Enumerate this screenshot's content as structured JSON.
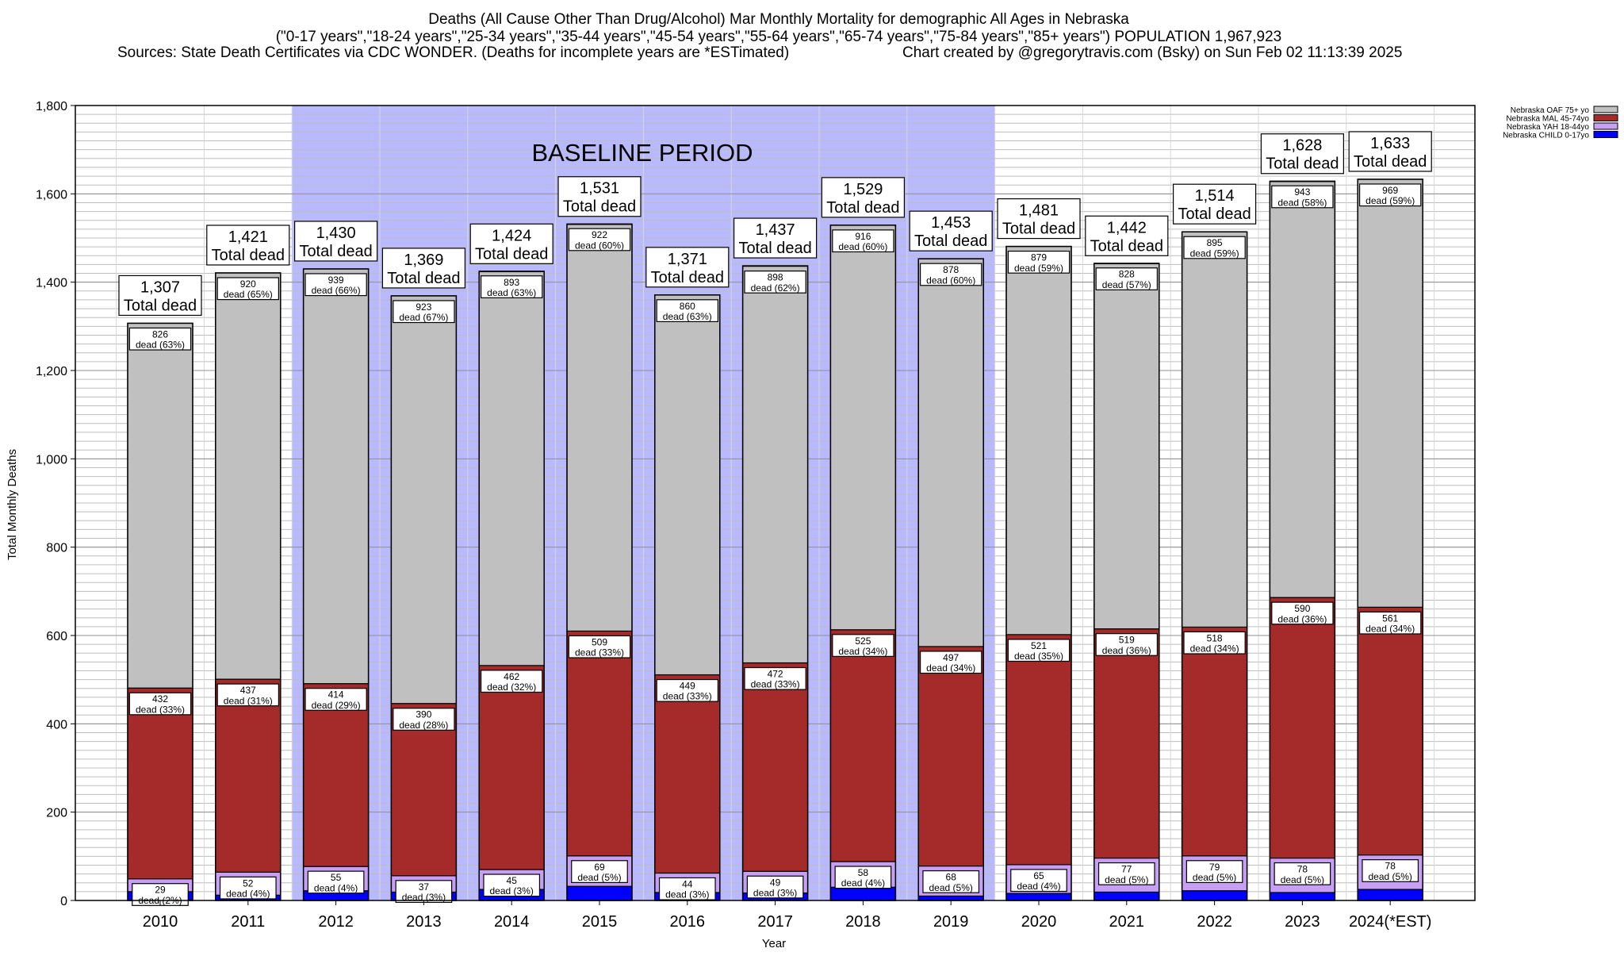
{
  "title_lines": [
    "Deaths (All Cause Other Than Drug/Alcohol) Mar Monthly Mortality for demographic All Ages in Nebraska",
    "(\"0-17 years\",\"18-24 years\",\"25-34 years\",\"35-44 years\",\"45-54 years\",\"55-64 years\",\"65-74 years\",\"75-84 years\",\"85+ years\") POPULATION 1,967,923",
    "Sources: State Death Certificates via CDC WONDER. (Deaths for incomplete years are *ESTimated)",
    "Chart created by @gregorytravis.com (Bsky) on Sun Feb 02 11:13:39 2025"
  ],
  "baseline_label": "BASELINE PERIOD",
  "total_word": "Total dead",
  "dead_word": "dead",
  "colors": {
    "oaf": "#c0c0c0",
    "mal": "#a52a2a",
    "yah": "#c7a0f5",
    "child": "#0000ff",
    "baseline": "#b9b9ff"
  },
  "chart_data": {
    "type": "bar",
    "stacked": true,
    "xlabel": "Year",
    "ylabel": "Total Monthly Deaths",
    "ylim": [
      0,
      1800
    ],
    "yticks": [
      0,
      200,
      400,
      600,
      800,
      1000,
      1200,
      1400,
      1600,
      1800
    ],
    "ytick_labels": [
      "0",
      "200",
      "400",
      "600",
      "800",
      "1,000",
      "1,200",
      "1,400",
      "1,600",
      "1,800"
    ],
    "grid": true,
    "legend_position": "top-right",
    "baseline_period": [
      "2012",
      "2019"
    ],
    "categories": [
      "2010",
      "2011",
      "2012",
      "2013",
      "2014",
      "2015",
      "2016",
      "2017",
      "2018",
      "2019",
      "2020",
      "2021",
      "2022",
      "2023",
      "2024(*EST)"
    ],
    "totals": [
      1307,
      1421,
      1430,
      1369,
      1424,
      1531,
      1371,
      1437,
      1529,
      1453,
      1481,
      1442,
      1514,
      1628,
      1633
    ],
    "total_labels": [
      "1,307",
      "1,421",
      "1,430",
      "1,369",
      "1,424",
      "1,531",
      "1,371",
      "1,437",
      "1,529",
      "1,453",
      "1,481",
      "1,442",
      "1,514",
      "1,628",
      "1,633"
    ],
    "series": [
      {
        "name": "Nebraska CHILD 0-17yo",
        "key": "child",
        "values": [
          20,
          12,
          22,
          19,
          25,
          32,
          18,
          17,
          30,
          10,
          16,
          19,
          22,
          18,
          25
        ],
        "labels": [],
        "pct": []
      },
      {
        "name": "Nebraska YAH 18-44yo",
        "key": "yah",
        "values": [
          29,
          52,
          55,
          37,
          45,
          69,
          44,
          49,
          58,
          68,
          65,
          77,
          79,
          78,
          78
        ],
        "labels": [
          "29",
          "52",
          "55",
          "37",
          "45",
          "69",
          "44",
          "49",
          "58",
          "68",
          "65",
          "77",
          "79",
          "78",
          "78"
        ],
        "pct": [
          "(2%)",
          "(4%)",
          "(4%)",
          "(3%)",
          "(3%)",
          "(5%)",
          "(3%)",
          "(3%)",
          "(4%)",
          "(5%)",
          "(4%)",
          "(5%)",
          "(5%)",
          "(5%)",
          "(5%)"
        ]
      },
      {
        "name": "Nebraska MAL 45-74yo",
        "key": "mal",
        "values": [
          432,
          437,
          414,
          390,
          462,
          509,
          449,
          472,
          525,
          497,
          521,
          519,
          518,
          590,
          561
        ],
        "labels": [
          "432",
          "437",
          "414",
          "390",
          "462",
          "509",
          "449",
          "472",
          "525",
          "497",
          "521",
          "519",
          "518",
          "590",
          "561"
        ],
        "pct": [
          "(33%)",
          "(31%)",
          "(29%)",
          "(28%)",
          "(32%)",
          "(33%)",
          "(33%)",
          "(33%)",
          "(34%)",
          "(34%)",
          "(35%)",
          "(36%)",
          "(34%)",
          "(36%)",
          "(34%)"
        ]
      },
      {
        "name": "Nebraska OAF 75+ yo",
        "key": "oaf",
        "values": [
          826,
          920,
          939,
          923,
          893,
          922,
          860,
          898,
          916,
          878,
          879,
          828,
          895,
          943,
          969
        ],
        "labels": [
          "826",
          "920",
          "939",
          "923",
          "893",
          "922",
          "860",
          "898",
          "916",
          "878",
          "879",
          "828",
          "895",
          "943",
          "969"
        ],
        "pct": [
          "(63%)",
          "(65%)",
          "(66%)",
          "(67%)",
          "(63%)",
          "(60%)",
          "(63%)",
          "(62%)",
          "(60%)",
          "(60%)",
          "(59%)",
          "(57%)",
          "(59%)",
          "(58%)",
          "(59%)"
        ]
      }
    ]
  }
}
